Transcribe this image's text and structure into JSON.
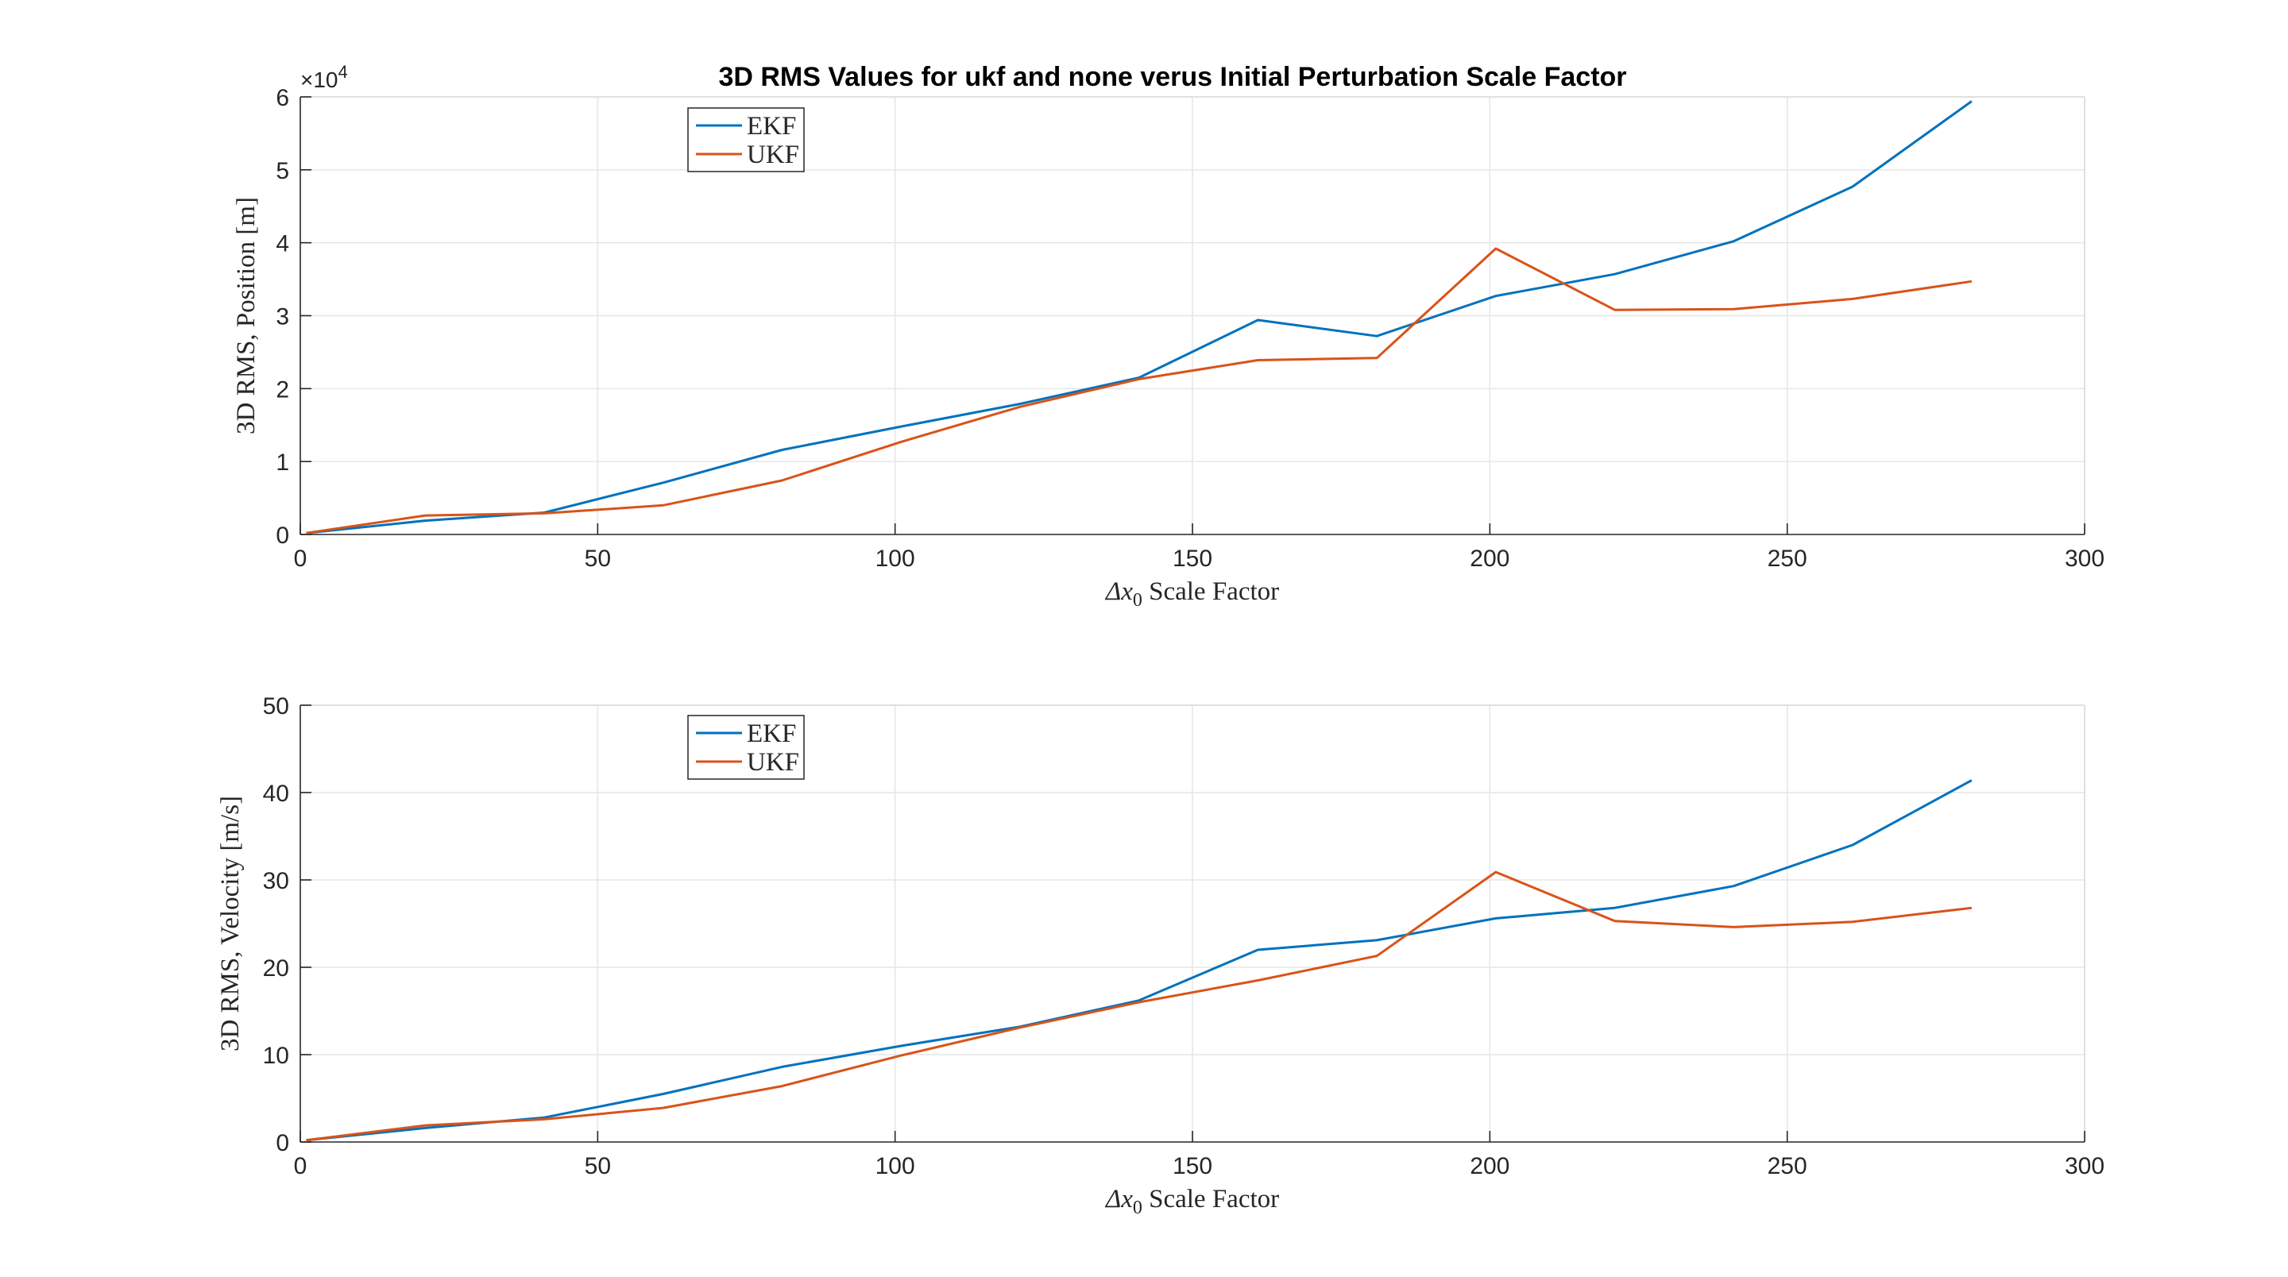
{
  "figure_title": "3D RMS Values for ukf and none verus Initial Perturbation Scale Factor",
  "colors": {
    "EKF": "#0072BD",
    "UKF": "#D95319"
  },
  "chart_data": [
    {
      "type": "line",
      "title": "3D RMS Values for ukf and none verus Initial Perturbation Scale Factor",
      "xlabel": "Δx0 Scale Factor",
      "ylabel": "3D RMS, Position [m]",
      "xlim": [
        0,
        300
      ],
      "ylim": [
        0,
        60000
      ],
      "xticks": [
        0,
        50,
        100,
        150,
        200,
        250,
        300
      ],
      "xtick_labels": [
        "0",
        "50",
        "100",
        "150",
        "200",
        "250",
        "300"
      ],
      "yticks": [
        0,
        10000,
        20000,
        30000,
        40000,
        50000,
        60000
      ],
      "ytick_labels": [
        "0",
        "1",
        "2",
        "3",
        "4",
        "5",
        "6"
      ],
      "y_exponent_label": "×10",
      "y_exponent_power": "4",
      "grid": true,
      "legend": "top-left",
      "x": [
        1,
        21,
        41,
        61,
        81,
        101,
        121,
        141,
        161,
        181,
        201,
        221,
        241,
        261,
        281
      ],
      "series": [
        {
          "name": "EKF",
          "color": "#0072BD",
          "values": [
            200,
            1900,
            3000,
            7100,
            11600,
            14800,
            17900,
            21500,
            29400,
            27200,
            32700,
            35700,
            40200,
            47700,
            59400
          ]
        },
        {
          "name": "UKF",
          "color": "#D95319",
          "values": [
            200,
            2600,
            2900,
            4000,
            7400,
            12700,
            17500,
            21300,
            23900,
            24200,
            39200,
            30800,
            30900,
            32300,
            34700
          ]
        }
      ]
    },
    {
      "type": "line",
      "title": "",
      "xlabel": "Δx0 Scale Factor",
      "ylabel": "3D RMS, Velocity [m/s]",
      "xlim": [
        0,
        300
      ],
      "ylim": [
        0,
        50
      ],
      "xticks": [
        0,
        50,
        100,
        150,
        200,
        250,
        300
      ],
      "xtick_labels": [
        "0",
        "50",
        "100",
        "150",
        "200",
        "250",
        "300"
      ],
      "yticks": [
        0,
        10,
        20,
        30,
        40,
        50
      ],
      "ytick_labels": [
        "0",
        "10",
        "20",
        "30",
        "40",
        "50"
      ],
      "grid": true,
      "legend": "top-left",
      "x": [
        1,
        21,
        41,
        61,
        81,
        101,
        121,
        141,
        161,
        181,
        201,
        221,
        241,
        261,
        281
      ],
      "series": [
        {
          "name": "EKF",
          "color": "#0072BD",
          "values": [
            0.2,
            1.6,
            2.8,
            5.5,
            8.6,
            11.0,
            13.2,
            16.2,
            22.0,
            23.1,
            25.6,
            26.8,
            29.3,
            34.0,
            41.4
          ]
        },
        {
          "name": "UKF",
          "color": "#D95319",
          "values": [
            0.2,
            1.9,
            2.6,
            3.9,
            6.4,
            9.9,
            13.1,
            16.0,
            18.5,
            21.3,
            30.9,
            25.3,
            24.6,
            25.2,
            26.8
          ]
        }
      ]
    }
  ]
}
